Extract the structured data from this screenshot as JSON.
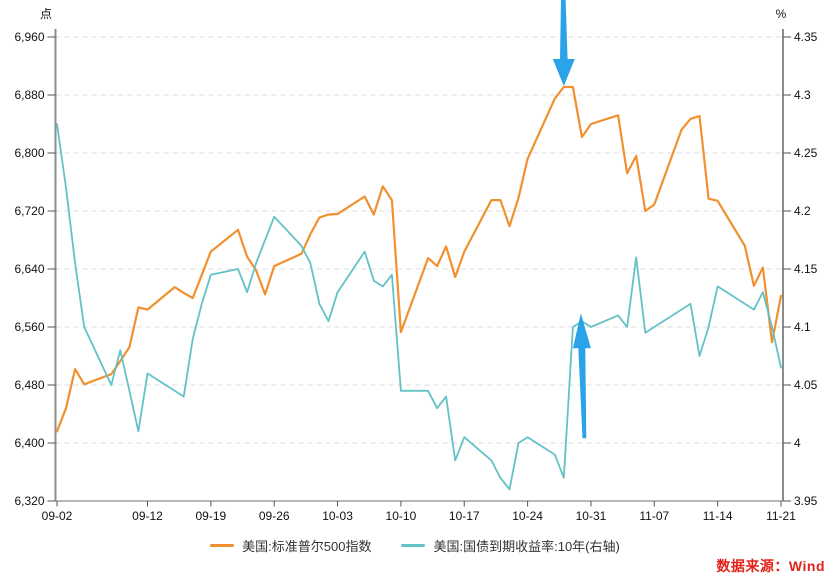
{
  "source_note": {
    "text": "数据来源：Wind",
    "color": "#E2231A"
  },
  "chart_data": {
    "type": "line",
    "title": "",
    "grid": "horizontal-dashed",
    "legend_position": "bottom-center",
    "style": {
      "grid_color": "#DCDCDC",
      "axis_color": "#8C8C8C",
      "tick_color": "#555555",
      "label_color": "#111111",
      "background": "#FFFFFF"
    },
    "left_axis": {
      "unit": "点",
      "min": 6320,
      "max": 6960,
      "tick_labels": [
        "6,960",
        "6,880",
        "6,800",
        "6,720",
        "6,640",
        "6,560",
        "6,480",
        "6,400",
        "6,320"
      ]
    },
    "right_axis": {
      "unit": "%",
      "min": 3.95,
      "max": 4.35,
      "tick_labels": [
        "4.35",
        "4.3",
        "4.25",
        "4.2",
        "4.15",
        "4.1",
        "4.05",
        "4",
        "3.95"
      ]
    },
    "x_axis": {
      "start_date": "09-02",
      "end_date": "11-21",
      "tick_labels": [
        "09-02",
        "09-12",
        "09-19",
        "09-26",
        "10-03",
        "10-10",
        "10-17",
        "10-24",
        "10-31",
        "11-07",
        "11-14",
        "11-21"
      ]
    },
    "series": [
      {
        "key": "sp500",
        "name": "美国:标准普尔500指数",
        "axis": "left",
        "color": "#F0902F",
        "stroke_width": 2.2,
        "dates": [
          "09-02",
          "09-03",
          "09-04",
          "09-05",
          "09-08",
          "09-09",
          "09-10",
          "09-11",
          "09-12",
          "09-15",
          "09-16",
          "09-17",
          "09-18",
          "09-19",
          "09-22",
          "09-23",
          "09-24",
          "09-25",
          "09-26",
          "09-29",
          "09-30",
          "10-01",
          "10-02",
          "10-03",
          "10-06",
          "10-07",
          "10-08",
          "10-09",
          "10-10",
          "10-13",
          "10-14",
          "10-15",
          "10-16",
          "10-17",
          "10-20",
          "10-21",
          "10-22",
          "10-23",
          "10-24",
          "10-27",
          "10-28",
          "10-29",
          "10-30",
          "10-31",
          "11-03",
          "11-04",
          "11-05",
          "11-06",
          "11-07",
          "11-10",
          "11-11",
          "11-12",
          "11-13",
          "11-14",
          "11-17",
          "11-18",
          "11-19",
          "11-20",
          "11-21"
        ],
        "values": [
          6416,
          6448,
          6502,
          6481,
          6495,
          6513,
          6532,
          6587,
          6584,
          6615,
          6607,
          6600,
          6632,
          6664,
          6694,
          6657,
          6638,
          6605,
          6644,
          6661,
          6688,
          6711,
          6715,
          6716,
          6740,
          6715,
          6754,
          6735,
          6553,
          6655,
          6644,
          6671,
          6629,
          6664,
          6735,
          6735,
          6699,
          6738,
          6792,
          6875,
          6891,
          6891,
          6822,
          6840,
          6852,
          6772,
          6796,
          6720,
          6729,
          6832,
          6847,
          6851,
          6737,
          6734,
          6672,
          6617,
          6642,
          6539,
          6603
        ]
      },
      {
        "key": "yield10y",
        "name": "美国:国债到期收益率:10年(右轴)",
        "axis": "right",
        "color": "#63C2C5",
        "stroke_width": 1.8,
        "dates": [
          "09-02",
          "09-03",
          "09-04",
          "09-05",
          "09-08",
          "09-09",
          "09-10",
          "09-11",
          "09-12",
          "09-15",
          "09-16",
          "09-17",
          "09-18",
          "09-19",
          "09-22",
          "09-23",
          "09-24",
          "09-25",
          "09-26",
          "09-29",
          "09-30",
          "10-01",
          "10-02",
          "10-03",
          "10-06",
          "10-07",
          "10-08",
          "10-09",
          "10-10",
          "10-13",
          "10-14",
          "10-15",
          "10-16",
          "10-17",
          "10-20",
          "10-21",
          "10-22",
          "10-23",
          "10-24",
          "10-27",
          "10-28",
          "10-29",
          "10-30",
          "10-31",
          "11-03",
          "11-04",
          "11-05",
          "11-06",
          "11-07",
          "11-10",
          "11-11",
          "11-12",
          "11-13",
          "11-14",
          "11-17",
          "11-18",
          "11-19",
          "11-20",
          "11-21"
        ],
        "values": [
          4.275,
          4.22,
          4.155,
          4.1,
          4.05,
          4.08,
          4.045,
          4.01,
          4.06,
          4.045,
          4.04,
          4.09,
          4.12,
          4.145,
          4.15,
          4.13,
          4.155,
          4.175,
          4.195,
          4.17,
          4.155,
          4.12,
          4.105,
          4.13,
          4.165,
          4.14,
          4.135,
          4.145,
          4.045,
          4.045,
          4.03,
          4.04,
          3.985,
          4.005,
          3.985,
          3.97,
          3.96,
          4.0,
          4.005,
          3.99,
          3.97,
          4.1,
          4.105,
          4.1,
          4.11,
          4.1,
          4.16,
          4.095,
          4.1,
          4.115,
          4.12,
          4.075,
          4.1,
          4.135,
          4.12,
          4.115,
          4.13,
          4.1,
          4.065
        ]
      }
    ],
    "annotations": [
      {
        "shape": "arrow",
        "direction": "down",
        "color": "#2BA3E8",
        "target_series": "sp500",
        "target_date": "10-28"
      },
      {
        "shape": "arrow",
        "direction": "up",
        "color": "#2BA3E8",
        "target_series": "yield10y",
        "target_date": "10-30"
      }
    ]
  }
}
